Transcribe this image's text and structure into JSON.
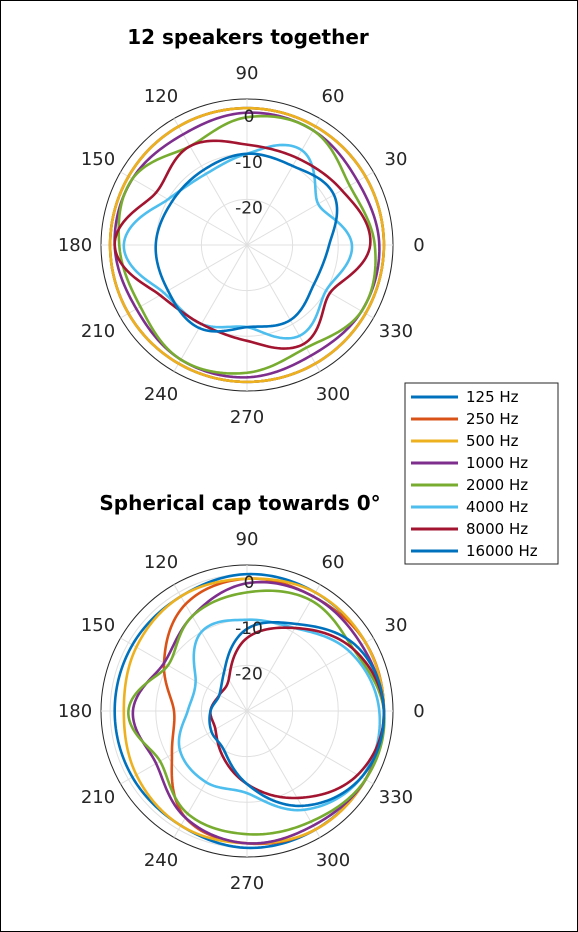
{
  "legend": [
    "125 Hz",
    "250 Hz",
    "500 Hz",
    "1000 Hz",
    "2000 Hz",
    "4000 Hz",
    "8000 Hz",
    "16000 Hz"
  ],
  "colors": [
    "#0072BD",
    "#D95319",
    "#EDB120",
    "#7E2F8E",
    "#77AC30",
    "#4DBEEE",
    "#A2142F",
    "#0072BD"
  ],
  "chart_data": [
    {
      "type": "polar-line",
      "title": "12 speakers together",
      "angle_ticks": [
        "0",
        "30",
        "60",
        "90",
        "120",
        "150",
        "180",
        "210",
        "240",
        "270",
        "300",
        "330"
      ],
      "radial_ticks": [
        "0",
        "-10",
        "-20"
      ],
      "rlim": [
        -30,
        2
      ],
      "angles_deg": [
        0,
        30,
        60,
        90,
        120,
        150,
        180,
        210,
        240,
        270,
        300,
        330
      ],
      "series": [
        {
          "name": "125 Hz",
          "values": [
            0,
            0,
            0,
            0,
            0,
            0,
            0,
            0,
            0,
            0,
            0,
            0
          ]
        },
        {
          "name": "250 Hz",
          "values": [
            0,
            0,
            0,
            0,
            0,
            0,
            0,
            0,
            0,
            0,
            0,
            0
          ]
        },
        {
          "name": "500 Hz",
          "values": [
            0,
            0,
            0,
            0,
            0,
            0,
            0,
            0,
            0,
            0,
            0,
            0
          ]
        },
        {
          "name": "1000 Hz",
          "values": [
            -1,
            -2,
            -1,
            -1,
            -2,
            -1,
            -1,
            -2,
            -1,
            -1,
            -2,
            -1
          ]
        },
        {
          "name": "2000 Hz",
          "values": [
            -2,
            -4,
            -1,
            -2,
            -5,
            -1,
            -2,
            -3,
            -1,
            -2,
            -4,
            -1
          ]
        },
        {
          "name": "4000 Hz",
          "values": [
            -7,
            -12,
            -6,
            -10,
            -12,
            -10,
            -3,
            -9,
            -10,
            -12,
            -7,
            -10
          ]
        },
        {
          "name": "8000 Hz",
          "values": [
            -3,
            -6,
            -8,
            -8,
            -5,
            -7,
            -1,
            -8,
            -10,
            -9,
            -5,
            -9
          ]
        },
        {
          "name": "16000 Hz",
          "values": [
            -12,
            -8,
            -10,
            -10,
            -11,
            -11,
            -10,
            -10,
            -9,
            -12,
            -11,
            -13
          ]
        }
      ]
    },
    {
      "type": "polar-line",
      "title": "Spherical cap towards 0°",
      "angle_ticks": [
        "0",
        "30",
        "60",
        "90",
        "120",
        "150",
        "180",
        "210",
        "240",
        "270",
        "300",
        "330"
      ],
      "radial_ticks": [
        "0",
        "-10",
        "-20"
      ],
      "rlim": [
        -30,
        2
      ],
      "angles_deg": [
        0,
        30,
        60,
        90,
        120,
        150,
        180,
        210,
        240,
        270,
        300,
        330
      ],
      "series": [
        {
          "name": "125 Hz",
          "values": [
            0,
            0,
            0,
            0,
            -1,
            -1,
            -1,
            -1,
            -1,
            0,
            0,
            0
          ]
        },
        {
          "name": "250 Hz",
          "values": [
            0,
            0,
            -1,
            -1,
            -3,
            -9,
            -14,
            -11,
            -3,
            -1,
            0,
            0
          ]
        },
        {
          "name": "500 Hz",
          "values": [
            0,
            0,
            0,
            -1,
            -1,
            -2,
            -3,
            -2,
            -1,
            -1,
            0,
            0
          ]
        },
        {
          "name": "1000 Hz",
          "values": [
            0,
            -1,
            -1,
            -2,
            -6,
            -9,
            -5,
            -7,
            -3,
            -1,
            -1,
            0
          ]
        },
        {
          "name": "2000 Hz",
          "values": [
            0,
            -3,
            -2,
            -4,
            -6,
            -10,
            -4,
            -8,
            -4,
            -3,
            -2,
            0
          ]
        },
        {
          "name": "4000 Hz",
          "values": [
            -1,
            -4,
            -9,
            -10,
            -10,
            -17,
            -17,
            -13,
            -12,
            -12,
            -5,
            -1
          ]
        },
        {
          "name": "8000 Hz",
          "values": [
            0,
            -3,
            -9,
            -14,
            -22,
            -23,
            -22,
            -22,
            -19,
            -14,
            -8,
            -2
          ]
        },
        {
          "name": "16000 Hz",
          "values": [
            0,
            -2,
            -8,
            -12,
            -20,
            -23,
            -22,
            -21,
            -20,
            -14,
            -6,
            -1
          ]
        }
      ]
    }
  ]
}
